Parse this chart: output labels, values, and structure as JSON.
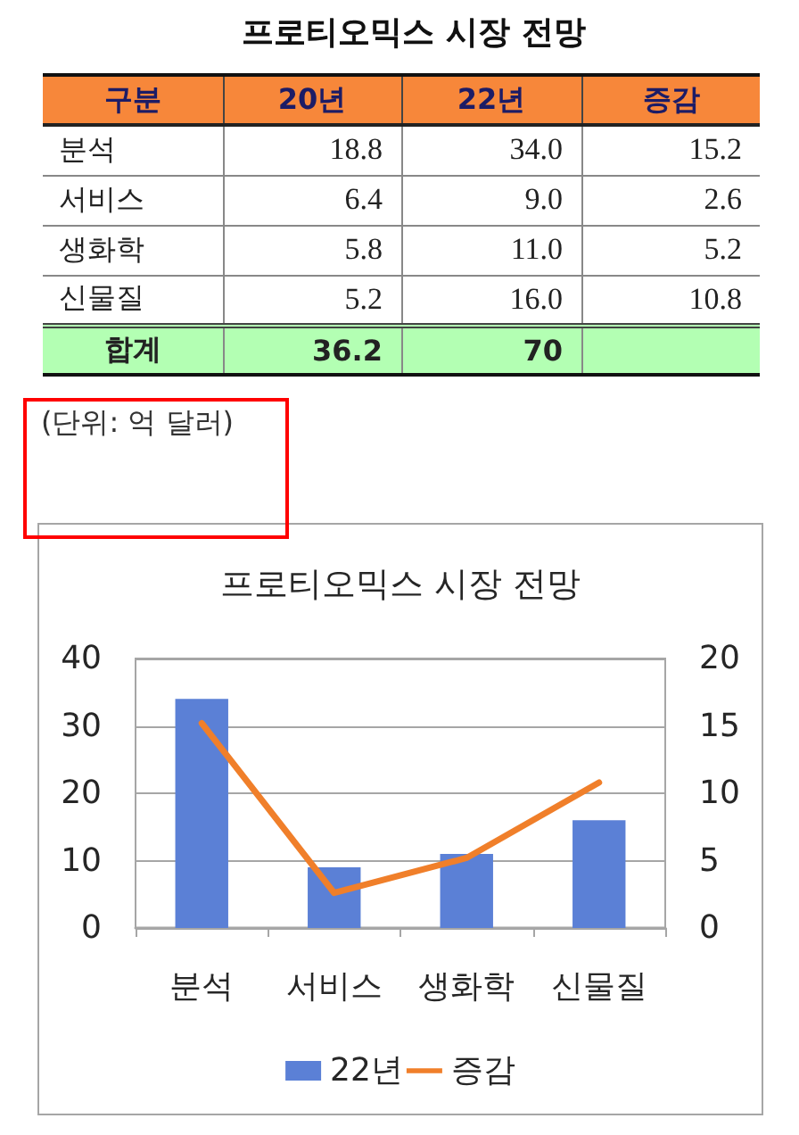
{
  "chart_data": [
    {
      "type": "other",
      "title": "프로티오믹스 시장 전망",
      "xlabel": "구분",
      "categories": [
        "분석",
        "서비스",
        "생화학",
        "신물질",
        "합계"
      ],
      "series": [
        {
          "name": "20년",
          "colors": [
            "#ffffff",
            "#ffffff",
            "#ffffff",
            "#ffffff",
            "#b3ffb3"
          ],
          "values": [
            18.8,
            6.4,
            5.8,
            5.2,
            36.2
          ]
        },
        {
          "name": "22년",
          "colors": [
            "#ffffff",
            "#ffffff",
            "#ffffff",
            "#ffffff",
            "#b3ffb3"
          ],
          "values": [
            34.0,
            9.0,
            11.0,
            16.0,
            70
          ],
          "value_labels": [
            "34.0",
            "9.0",
            "11.0",
            "16.0",
            "70"
          ]
        },
        {
          "name": "증감",
          "colors": [
            "#ffffff",
            "#ffffff",
            "#ffffff",
            "#ffffff",
            "#b3ffb3"
          ],
          "values": [
            15.2,
            2.6,
            5.2,
            10.8,
            null
          ]
        }
      ],
      "data_labels": true,
      "annotations": [
        "(단위: 억 달러)"
      ]
    },
    {
      "type": "bar",
      "title": "프로티오믹스 시장 전망",
      "categories": [
        "분석",
        "서비스",
        "생화학",
        "신물질"
      ],
      "series": [
        {
          "name": "22년",
          "color": "#5b80d6",
          "values": [
            34,
            9,
            11,
            16
          ]
        },
        {
          "name": "증감",
          "type": "line",
          "axis": "y2",
          "color": "#f07f2a",
          "values": [
            15.2,
            2.6,
            5.2,
            10.8
          ]
        }
      ],
      "ylim": [
        0,
        40
      ],
      "yticks": [
        0,
        10,
        20,
        30,
        40
      ],
      "y2lim": [
        0,
        20
      ],
      "y2ticks": [
        0,
        5,
        10,
        15,
        20
      ],
      "grid": "y",
      "legend": "bottom",
      "marker": "none"
    }
  ]
}
